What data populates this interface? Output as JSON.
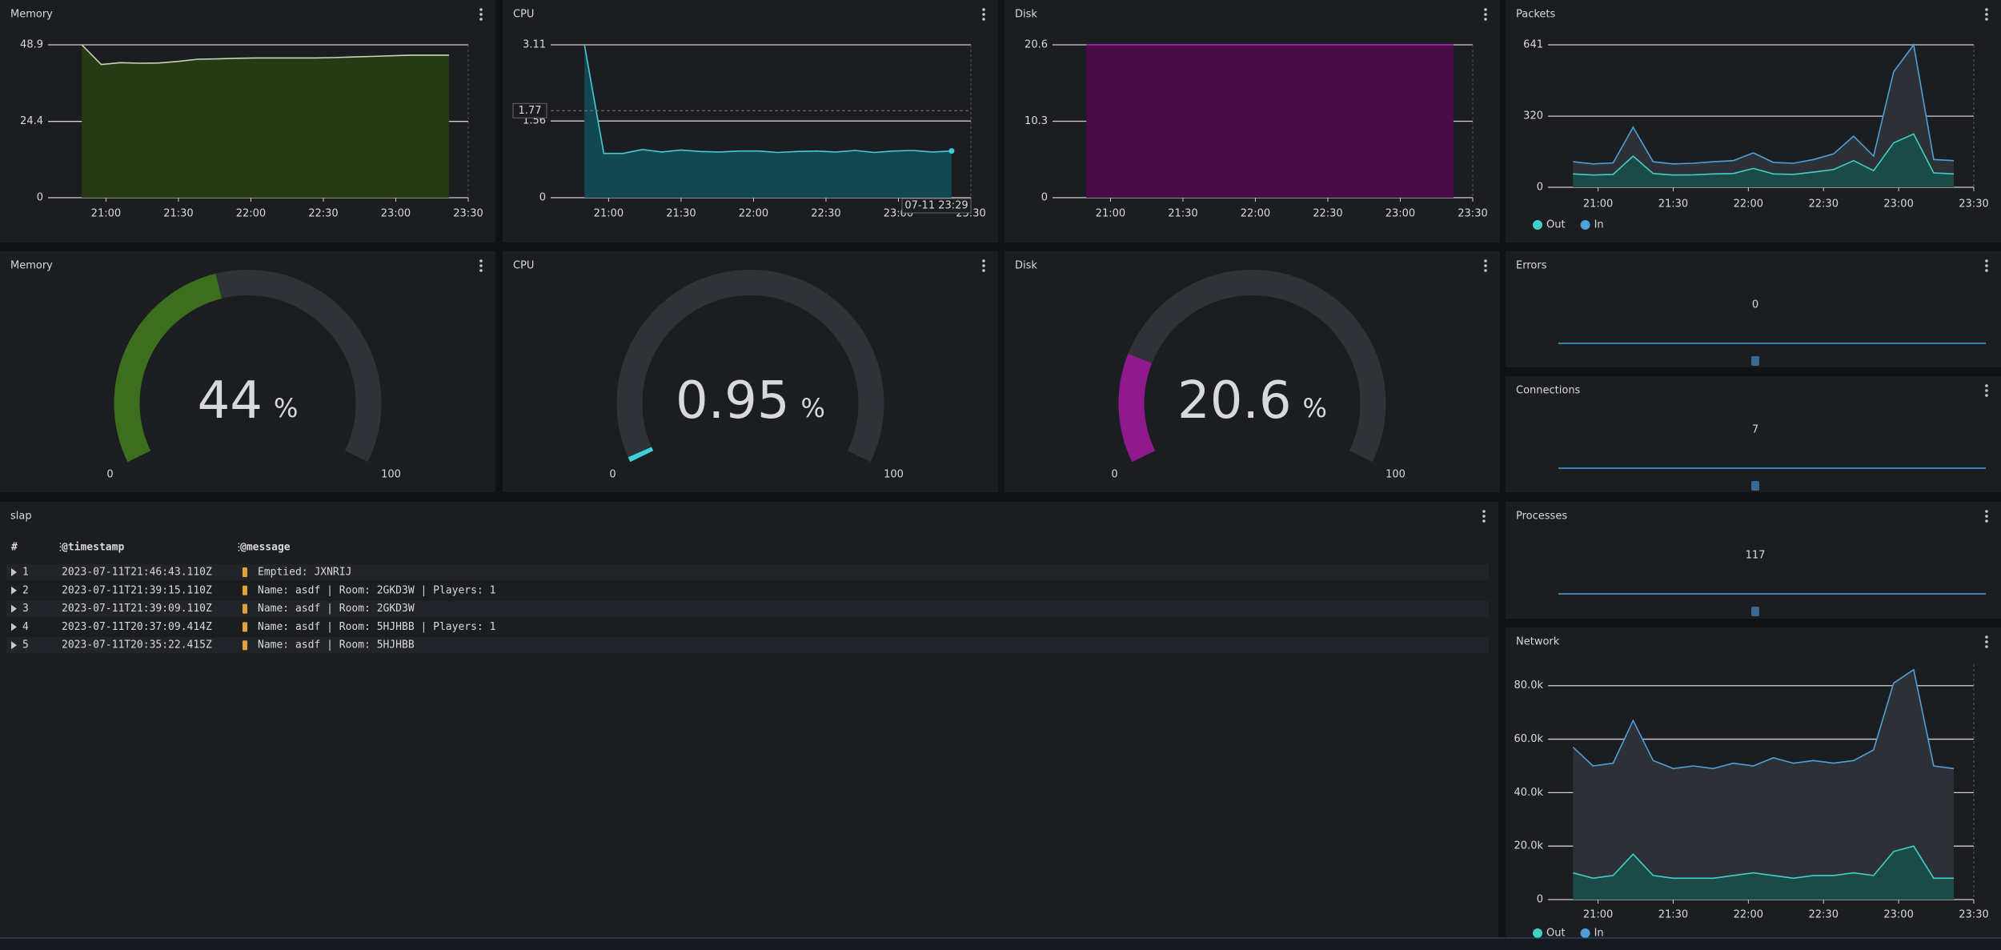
{
  "chart_data": [
    {
      "type": "area",
      "title": "Memory",
      "color": "#c9d4b9",
      "fill": "#263a16",
      "x": [
        1250,
        1258,
        1266,
        1274,
        1282,
        1290,
        1298,
        1306,
        1314,
        1322,
        1330,
        1338,
        1346,
        1354,
        1362,
        1370,
        1378,
        1386,
        1394,
        1402
      ],
      "values": [
        48.9,
        42.6,
        43.2,
        43.0,
        43.1,
        43.6,
        44.3,
        44.4,
        44.6,
        44.7,
        44.7,
        44.7,
        44.7,
        44.8,
        45.0,
        45.2,
        45.4,
        45.6,
        45.6,
        45.6
      ],
      "xlim": [
        1236,
        1410
      ],
      "xticks": [
        {
          "value": 1260,
          "label": "21:00"
        },
        {
          "value": 1290,
          "label": "21:30"
        },
        {
          "value": 1320,
          "label": "22:00"
        },
        {
          "value": 1350,
          "label": "22:30"
        },
        {
          "value": 1380,
          "label": "23:00"
        },
        {
          "value": 1410,
          "label": "23:30"
        }
      ],
      "ylim": [
        0,
        48.9
      ],
      "yticks": [
        0,
        24.4,
        48.9
      ]
    },
    {
      "type": "area",
      "title": "CPU",
      "color": "#48c9d6",
      "fill": "#124852",
      "x": [
        1250,
        1258,
        1266,
        1274,
        1282,
        1290,
        1298,
        1306,
        1314,
        1322,
        1330,
        1338,
        1346,
        1354,
        1362,
        1370,
        1378,
        1386,
        1394,
        1402
      ],
      "values": [
        3.11,
        0.9,
        0.9,
        0.98,
        0.93,
        0.97,
        0.94,
        0.93,
        0.95,
        0.95,
        0.92,
        0.94,
        0.95,
        0.93,
        0.96,
        0.92,
        0.95,
        0.96,
        0.93,
        0.95
      ],
      "xlim": [
        1236,
        1410
      ],
      "xticks": [
        {
          "value": 1260,
          "label": "21:00"
        },
        {
          "value": 1290,
          "label": "21:30"
        },
        {
          "value": 1320,
          "label": "22:00"
        },
        {
          "value": 1350,
          "label": "22:30"
        },
        {
          "value": 1380,
          "label": "23:00"
        },
        {
          "value": 1410,
          "label": "23:30"
        }
      ],
      "ylim": [
        0,
        3.11
      ],
      "yticks": [
        0,
        1.56,
        3.11
      ],
      "crosshair_y": 1.77,
      "crosshair_time": "07-11 23:29"
    },
    {
      "type": "area",
      "title": "Disk",
      "color": "#b020b0",
      "fill": "#480c48",
      "x": [
        1250,
        1258,
        1266,
        1274,
        1282,
        1290,
        1298,
        1306,
        1314,
        1322,
        1330,
        1338,
        1346,
        1354,
        1362,
        1370,
        1378,
        1386,
        1394,
        1402
      ],
      "values": [
        20.6,
        20.6,
        20.6,
        20.6,
        20.6,
        20.6,
        20.6,
        20.6,
        20.6,
        20.6,
        20.6,
        20.6,
        20.6,
        20.6,
        20.6,
        20.6,
        20.6,
        20.6,
        20.6,
        20.6
      ],
      "xlim": [
        1236,
        1410
      ],
      "xticks": [
        {
          "value": 1260,
          "label": "21:00"
        },
        {
          "value": 1290,
          "label": "21:30"
        },
        {
          "value": 1320,
          "label": "22:00"
        },
        {
          "value": 1350,
          "label": "22:30"
        },
        {
          "value": 1380,
          "label": "23:00"
        },
        {
          "value": 1410,
          "label": "23:30"
        }
      ],
      "ylim": [
        0,
        20.6
      ],
      "yticks": [
        0,
        10.3,
        20.6
      ]
    },
    {
      "type": "area",
      "title": "Packets",
      "x": [
        1250,
        1258,
        1266,
        1274,
        1282,
        1290,
        1298,
        1306,
        1314,
        1322,
        1330,
        1338,
        1346,
        1354,
        1362,
        1370,
        1378,
        1386,
        1394,
        1402
      ],
      "series": [
        {
          "name": "Out",
          "color": "#3fd1c8",
          "fill": "#1c4a46",
          "values": [
            60,
            55,
            58,
            140,
            62,
            55,
            56,
            60,
            62,
            85,
            60,
            58,
            68,
            80,
            120,
            75,
            200,
            240,
            65,
            60
          ]
        },
        {
          "name": "In",
          "color": "#4f9fd8",
          "fill": "#2d3136",
          "values": [
            115,
            105,
            110,
            270,
            115,
            105,
            108,
            115,
            120,
            155,
            112,
            108,
            125,
            150,
            230,
            140,
            520,
            641,
            125,
            120
          ]
        }
      ],
      "xlim": [
        1240,
        1410
      ],
      "xticks": [
        {
          "value": 1260,
          "label": "21:00"
        },
        {
          "value": 1290,
          "label": "21:30"
        },
        {
          "value": 1320,
          "label": "22:00"
        },
        {
          "value": 1350,
          "label": "22:30"
        },
        {
          "value": 1380,
          "label": "23:00"
        },
        {
          "value": 1410,
          "label": "23:30"
        }
      ],
      "ylim": [
        0,
        641
      ],
      "yticks": [
        0,
        320,
        641
      ]
    },
    {
      "type": "gauge",
      "title": "Memory",
      "value": 44,
      "unit": "%",
      "min": 0,
      "max": 100,
      "color": "#3c6e1e"
    },
    {
      "type": "gauge",
      "title": "CPU",
      "value": 0.95,
      "unit": "%",
      "min": 0,
      "max": 100,
      "color": "#3fd1d8"
    },
    {
      "type": "gauge",
      "title": "Disk",
      "value": 20.6,
      "unit": "%",
      "min": 0,
      "max": 100,
      "color": "#8e1a8e"
    },
    {
      "type": "area",
      "title": "Network",
      "x": [
        1250,
        1258,
        1266,
        1274,
        1282,
        1290,
        1298,
        1306,
        1314,
        1322,
        1330,
        1338,
        1346,
        1354,
        1362,
        1370,
        1378,
        1386,
        1394,
        1402
      ],
      "series": [
        {
          "name": "Out",
          "color": "#3fd1c8",
          "fill": "#1c4a46",
          "values": [
            10000,
            8000,
            9000,
            17000,
            9000,
            8000,
            8000,
            8000,
            9000,
            10000,
            9000,
            8000,
            9000,
            9000,
            10000,
            9000,
            18000,
            20000,
            8000,
            8000
          ]
        },
        {
          "name": "In",
          "color": "#4f9fd8",
          "fill": "#2d3136",
          "values": [
            57000,
            50000,
            51000,
            67000,
            52000,
            49000,
            50000,
            49000,
            51000,
            50000,
            53000,
            51000,
            52000,
            51000,
            52000,
            56000,
            81000,
            86000,
            50000,
            49000
          ]
        }
      ],
      "xlim": [
        1240,
        1410
      ],
      "xticks": [
        {
          "value": 1260,
          "label": "21:00"
        },
        {
          "value": 1290,
          "label": "21:30"
        },
        {
          "value": 1320,
          "label": "22:00"
        },
        {
          "value": 1350,
          "label": "22:30"
        },
        {
          "value": 1380,
          "label": "23:00"
        },
        {
          "value": 1410,
          "label": "23:30"
        }
      ],
      "ylim": [
        0,
        88000
      ],
      "yticks": [
        0,
        {
          "value": 20000,
          "label": "20.0k"
        },
        {
          "value": 40000,
          "label": "40.0k"
        },
        {
          "value": 60000,
          "label": "60.0k"
        },
        {
          "value": 80000,
          "label": "80.0k"
        }
      ]
    }
  ],
  "stats": [
    {
      "title": "Errors",
      "value": 0
    },
    {
      "title": "Connections",
      "value": 7
    },
    {
      "title": "Processes",
      "value": 117
    }
  ],
  "log": {
    "title": "slap",
    "columns": [
      "#",
      "@timestamp",
      "@message"
    ],
    "rows": [
      [
        1,
        "2023-07-11T21:46:43.110Z",
        "Emptied: JXNRIJ"
      ],
      [
        2,
        "2023-07-11T21:39:15.110Z",
        "Name: asdf | Room: 2GKD3W | Players: 1"
      ],
      [
        3,
        "2023-07-11T21:39:09.110Z",
        "Name: asdf | Room: 2GKD3W"
      ],
      [
        4,
        "2023-07-11T20:37:09.414Z",
        "Name: asdf | Room: 5HJHBB | Players: 1"
      ],
      [
        5,
        "2023-07-11T20:35:22.415Z",
        "Name: asdf | Room: 5HJHBB"
      ]
    ]
  }
}
